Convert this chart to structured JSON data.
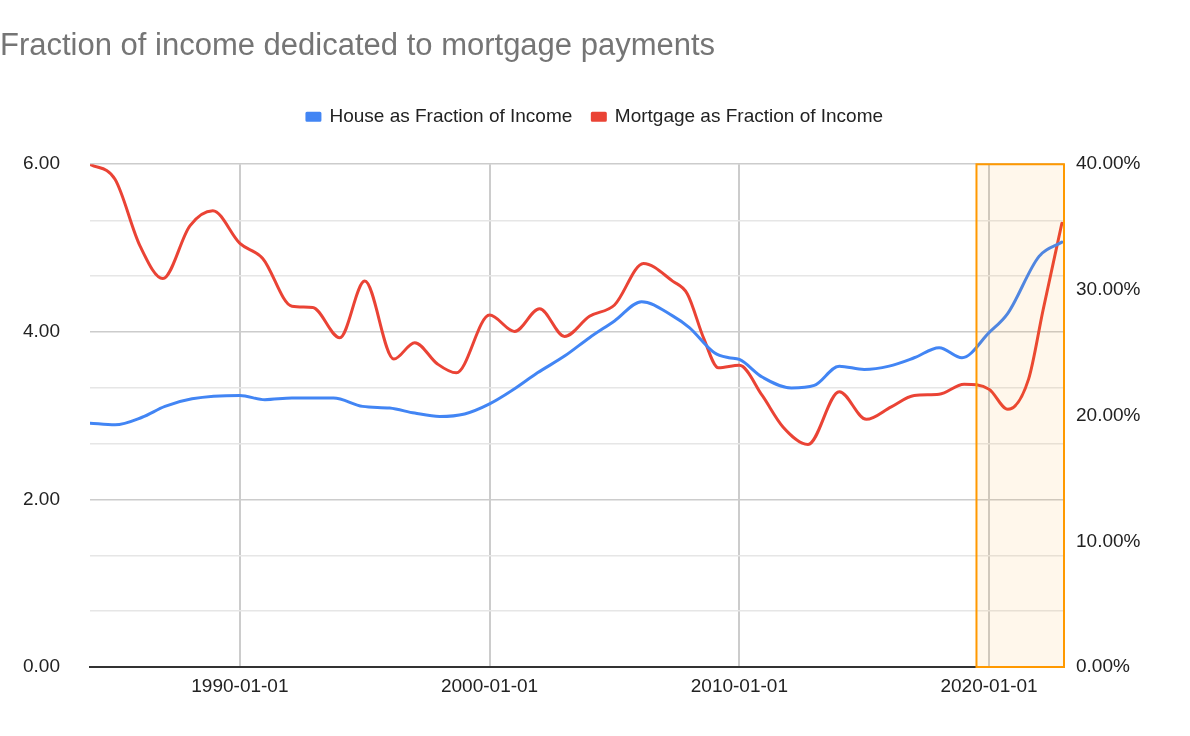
{
  "chart_data": {
    "type": "line",
    "title": "Fraction of income dedicated to mortgage payments",
    "legend": "top",
    "grid": true,
    "bands": [
      {
        "axis": "x",
        "from": "2019-07",
        "to": "2023-01",
        "color": "#ff9900"
      }
    ],
    "marker": "none",
    "line_style": "solid",
    "xlim": [
      "1984-01",
      "2023-01"
    ],
    "xticks": [
      "1990-01-01",
      "2000-01-01",
      "2010-01-01",
      "2020-01-01"
    ],
    "ylim": [
      0,
      6
    ],
    "yticks": [
      {
        "value": 0,
        "label": "0.00"
      },
      {
        "value": 0.67,
        "label": null
      },
      {
        "value": 1.33,
        "label": null
      },
      {
        "value": 2,
        "label": "2.00"
      },
      {
        "value": 2.67,
        "label": null
      },
      {
        "value": 3.33,
        "label": null
      },
      {
        "value": 4,
        "label": "4.00"
      },
      {
        "value": 4.67,
        "label": null
      },
      {
        "value": 5.33,
        "label": null
      },
      {
        "value": 6,
        "label": "6.00"
      }
    ],
    "y2lim": [
      0,
      40
    ],
    "y2ticks": [
      {
        "value": 0,
        "label": "0.00%"
      },
      {
        "value": 10,
        "label": "10.00%"
      },
      {
        "value": 20,
        "label": "20.00%"
      },
      {
        "value": 30,
        "label": "30.00%"
      },
      {
        "value": 40,
        "label": "40.00%"
      }
    ],
    "series": [
      {
        "name": "House as Fraction of Income",
        "color": "#4285f4",
        "x": [
          "1984-01",
          "1985-01",
          "1986-02",
          "1987-01",
          "1988-02",
          "1990-01",
          "1991-01",
          "1992-02",
          "1993-10",
          "1994-12",
          "1996-01",
          "1997-01",
          "1998-01",
          "1999-01",
          "2000-01",
          "2001-01",
          "2001-12",
          "2003-01",
          "2004-01",
          "2005-01",
          "2006-02",
          "2007-05",
          "2008-01",
          "2009-01",
          "2009-08",
          "2010-01",
          "2010-12",
          "2012-02",
          "2013-01",
          "2014-01",
          "2015-01",
          "2016-01",
          "2017-01",
          "2018-01",
          "2018-12",
          "2020-01",
          "2020-10",
          "2022-01",
          "2022-12"
        ],
        "values": [
          2.91,
          2.89,
          2.98,
          3.11,
          3.2,
          3.24,
          3.19,
          3.21,
          3.21,
          3.11,
          3.09,
          3.03,
          2.99,
          3.02,
          3.14,
          3.32,
          3.51,
          3.71,
          3.93,
          4.13,
          4.36,
          4.19,
          4.05,
          3.75,
          3.69,
          3.67,
          3.46,
          3.33,
          3.36,
          3.59,
          3.55,
          3.59,
          3.69,
          3.81,
          3.69,
          3.99,
          4.22,
          4.9,
          5.07
        ]
      },
      {
        "name": "Mortgage as Fraction of Income",
        "color": "#ea4335",
        "axis": "y2",
        "x": [
          "1984-01",
          "1985-01",
          "1986-01",
          "1986-12",
          "1988-01",
          "1988-12",
          "1990-01",
          "1990-12",
          "1992-02",
          "1992-12",
          "1994-01",
          "1995-01",
          "1996-03",
          "1997-01",
          "1997-12",
          "1998-09",
          "2000-01",
          "2001-01",
          "2002-01",
          "2003-01",
          "2004-01",
          "2005-01",
          "2006-03",
          "2007-05",
          "2007-12",
          "2008-08",
          "2009-03",
          "2010-01",
          "2010-12",
          "2011-10",
          "2012-10",
          "2014-01",
          "2015-02",
          "2016-02",
          "2017-01",
          "2018-01",
          "2019-01",
          "2020-01",
          "2020-10",
          "2021-08",
          "2022-03",
          "2022-12"
        ],
        "values": [
          40,
          38.8,
          33.5,
          30.9,
          35.1,
          36.3,
          33.7,
          32.5,
          28.7,
          28.6,
          26.2,
          30.7,
          24.5,
          25.8,
          24.1,
          23.4,
          28,
          26.7,
          28.5,
          26.3,
          27.9,
          28.8,
          32.1,
          30.7,
          29.7,
          26.1,
          23.8,
          24,
          21.6,
          19.1,
          17.7,
          21.9,
          19.7,
          20.7,
          21.6,
          21.7,
          22.5,
          22.1,
          20.5,
          22.9,
          28.4,
          35.3
        ]
      }
    ]
  }
}
